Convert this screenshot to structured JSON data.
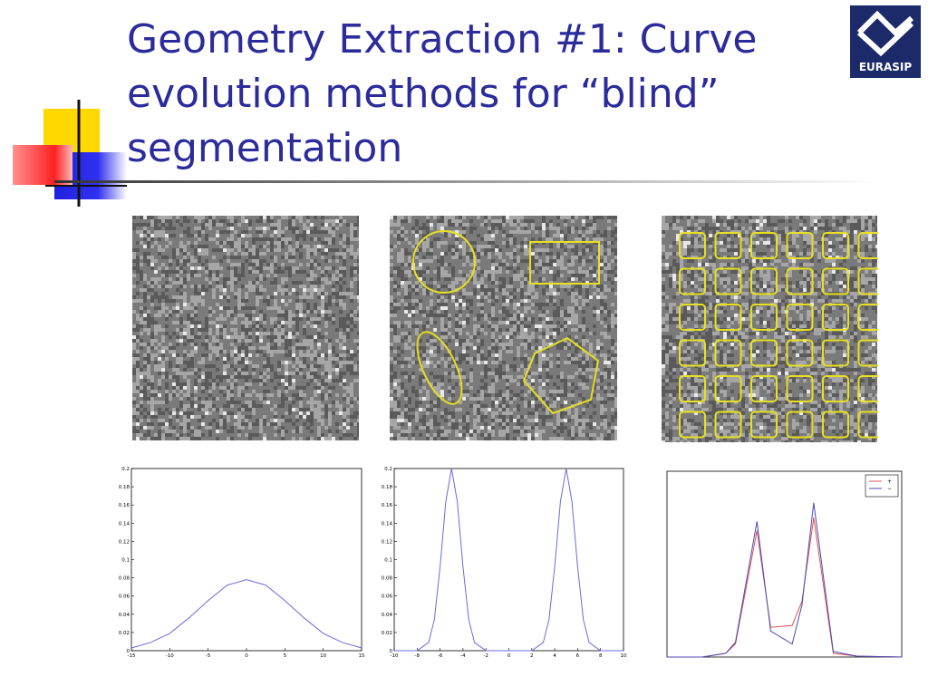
{
  "slide": {
    "title": "Geometry Extraction #1: Curve evolution methods for “blind” segmentation",
    "logo": "EURASIP"
  },
  "chart_data": [
    {
      "type": "line",
      "x": [
        -15,
        -12.5,
        -10,
        -7.5,
        -5,
        -2.5,
        0,
        2.5,
        5,
        7.5,
        10,
        12.5,
        15
      ],
      "series": [
        {
          "color": "#6a6adc",
          "values": [
            0.003,
            0.009,
            0.019,
            0.036,
            0.055,
            0.072,
            0.078,
            0.072,
            0.055,
            0.036,
            0.019,
            0.009,
            0.003
          ]
        }
      ],
      "xlim": [
        -15,
        15
      ],
      "xticks": [
        -15,
        -10,
        -5,
        0,
        5,
        10,
        15
      ],
      "ylim": [
        0,
        0.2
      ],
      "yticks": [
        0,
        0.02,
        0.04,
        0.06,
        0.08,
        0.1,
        0.12,
        0.14,
        0.16,
        0.18,
        0.2
      ]
    },
    {
      "type": "line",
      "x": [
        -10,
        -8,
        -7,
        -6.5,
        -6,
        -5.5,
        -5,
        -4.5,
        -4,
        -3.5,
        -3,
        -2,
        0,
        2,
        3,
        3.5,
        4,
        4.5,
        5,
        5.5,
        6,
        6.5,
        7,
        8,
        10
      ],
      "series": [
        {
          "color": "#6a6adc",
          "values": [
            0,
            0,
            0.009,
            0.034,
            0.092,
            0.164,
            0.2,
            0.164,
            0.092,
            0.034,
            0.009,
            0,
            0,
            0,
            0.009,
            0.034,
            0.092,
            0.164,
            0.2,
            0.164,
            0.092,
            0.034,
            0.009,
            0,
            0
          ]
        }
      ],
      "xlim": [
        -10,
        10
      ],
      "xticks": [
        -10,
        -8,
        -6,
        -4,
        -2,
        0,
        2,
        4,
        6,
        8,
        10
      ],
      "ylim": [
        0,
        0.2
      ],
      "yticks": [
        0,
        0.02,
        0.04,
        0.06,
        0.08,
        0.1,
        0.12,
        0.14,
        0.16,
        0.18,
        0.2
      ]
    },
    {
      "type": "line",
      "x": [
        0,
        1.8,
        3,
        3.5,
        4.6,
        5.3,
        6.4,
        6.9,
        7.5,
        8.5,
        9.7,
        12
      ],
      "series": [
        {
          "name": "+",
          "color": "#e05050",
          "values": [
            0,
            0,
            0.02,
            0.07,
            0.68,
            0.16,
            0.17,
            0.3,
            0.75,
            0.02,
            0.005,
            0
          ]
        },
        {
          "name": "−",
          "color": "#4a4ab8",
          "values": [
            0,
            0,
            0.02,
            0.08,
            0.73,
            0.14,
            0.07,
            0.28,
            0.83,
            0.03,
            0.005,
            0
          ]
        }
      ],
      "xlim": [
        0,
        12
      ],
      "ylim": [
        0,
        1
      ],
      "legend": "upper right"
    }
  ]
}
